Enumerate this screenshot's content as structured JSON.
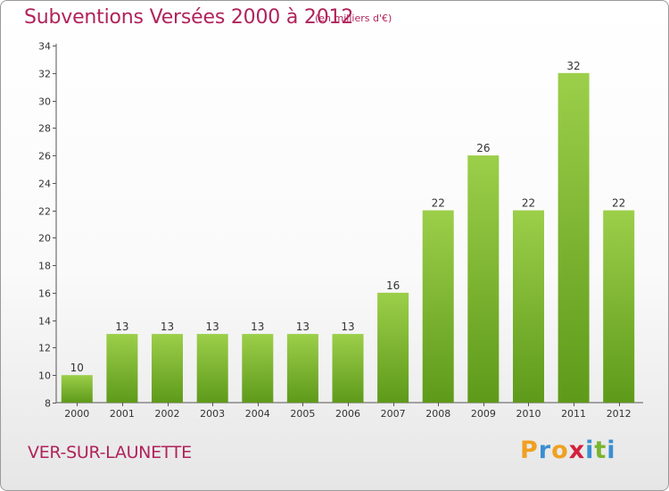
{
  "chart_data": {
    "type": "bar",
    "title": "Subventions Versées 2000 à 2012",
    "subtitle": "(en milliers d'€)",
    "categories": [
      "2000",
      "2001",
      "2002",
      "2003",
      "2004",
      "2005",
      "2006",
      "2007",
      "2008",
      "2009",
      "2010",
      "2011",
      "2012"
    ],
    "values": [
      10,
      13,
      13,
      13,
      13,
      13,
      13,
      16,
      22,
      26,
      22,
      32,
      22
    ],
    "ylim": [
      8,
      34
    ],
    "yticks": [
      8,
      10,
      12,
      14,
      16,
      18,
      20,
      22,
      24,
      26,
      28,
      30,
      32,
      34
    ],
    "grid": false,
    "bar_color_top": "#9ccf4a",
    "bar_color_bottom": "#5e9a1a"
  },
  "footer": {
    "commune": "VER-SUR-LAUNETTE"
  },
  "logo": {
    "letters": [
      "P",
      "r",
      "o",
      "x",
      "i",
      "t",
      "i"
    ],
    "colors": [
      "#f0a020",
      "#3a8fd0",
      "#f0a020",
      "#d4203c",
      "#3a8fd0",
      "#7ab52e",
      "#3a8fd0"
    ]
  },
  "colors": {
    "title": "#b0235a",
    "axis": "#555555"
  }
}
